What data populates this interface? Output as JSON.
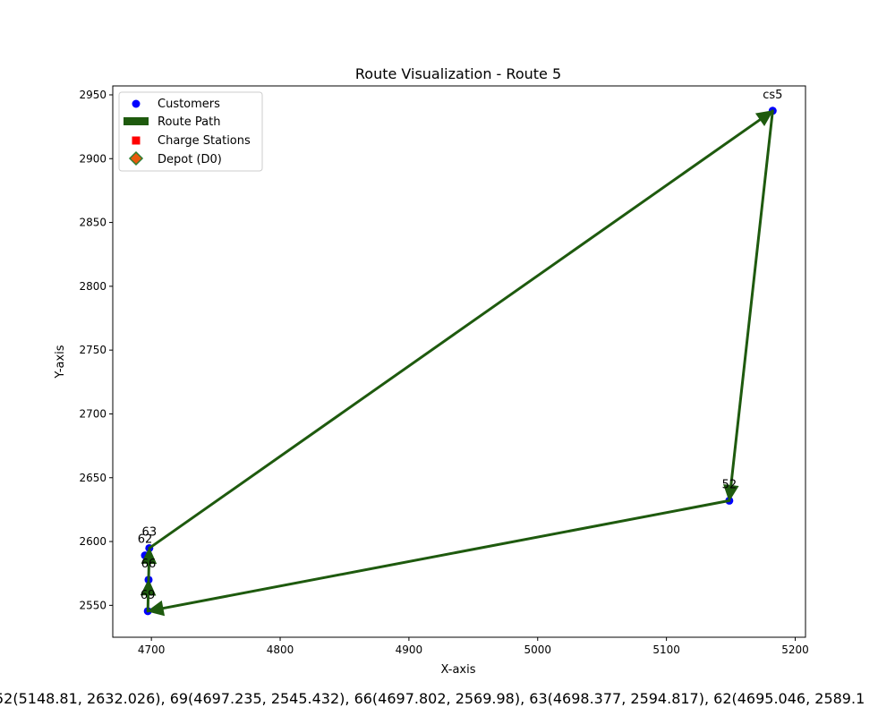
{
  "chart_data": {
    "type": "scatter",
    "title": "Route Visualization - Route 5",
    "xlabel": "X-axis",
    "ylabel": "Y-axis",
    "xlim": [
      4670,
      5208
    ],
    "ylim": [
      2525,
      2957
    ],
    "xticks": [
      4700,
      4800,
      4900,
      5000,
      5100,
      5200
    ],
    "yticks": [
      2550,
      2600,
      2650,
      2700,
      2750,
      2800,
      2850,
      2900,
      2950
    ],
    "legend_position": "top-left",
    "legend": [
      "Customers",
      "Route Path",
      "Charge Stations",
      "Depot (D0)"
    ],
    "colors": {
      "customers": "#0000ff",
      "route": "#1e5a0e",
      "charge": "#ff0000",
      "depot_fill": "#e8590c",
      "depot_edge": "#2e7d32"
    },
    "points": [
      {
        "label": "cs5",
        "x": 5182.5,
        "y": 2937.5
      },
      {
        "label": "52",
        "x": 5148.81,
        "y": 2632.026
      },
      {
        "label": "69",
        "x": 4697.235,
        "y": 2545.432
      },
      {
        "label": "66",
        "x": 4697.802,
        "y": 2569.98
      },
      {
        "label": "63",
        "x": 4698.377,
        "y": 2594.817
      },
      {
        "label": "62",
        "x": 4695.046,
        "y": 2589.1
      }
    ],
    "route": [
      {
        "x": 5182.5,
        "y": 2937.5
      },
      {
        "x": 5148.81,
        "y": 2632.026
      },
      {
        "x": 4697.235,
        "y": 2545.432
      },
      {
        "x": 4697.802,
        "y": 2569.98
      },
      {
        "x": 4698.377,
        "y": 2594.817
      },
      {
        "x": 5182.5,
        "y": 2937.5
      }
    ],
    "footer": "52(5148.81, 2632.026), 69(4697.235, 2545.432), 66(4697.802, 2569.98), 63(4698.377, 2594.817), 62(4695.046, 2589.1"
  }
}
